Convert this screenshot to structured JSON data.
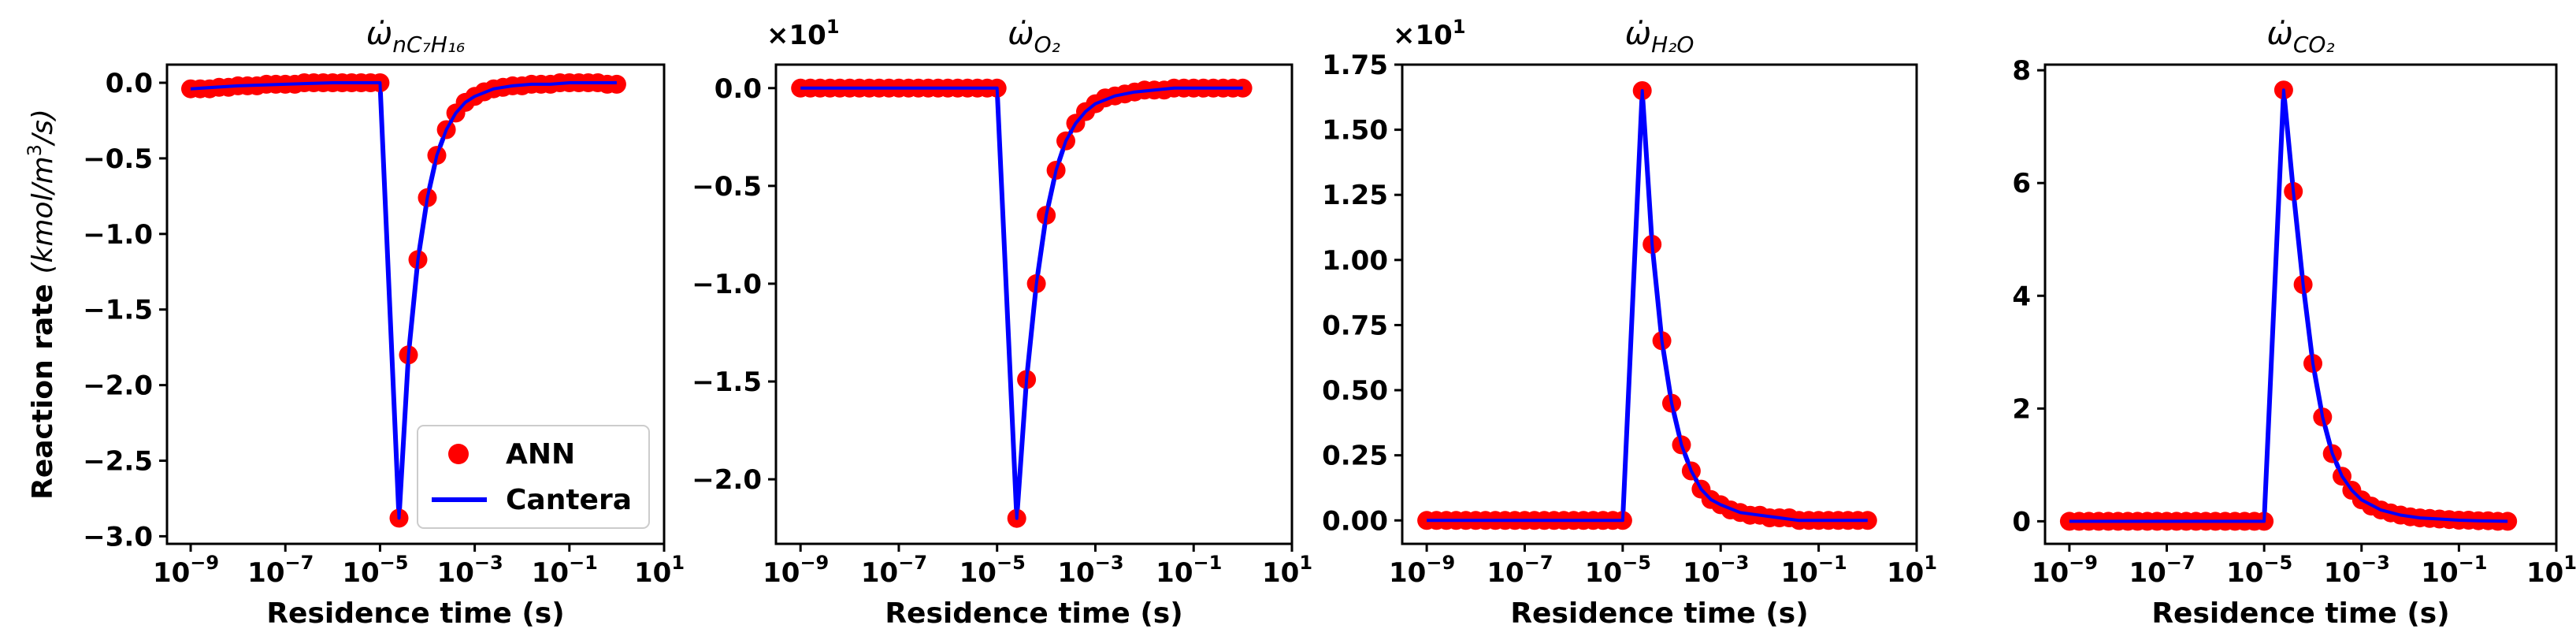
{
  "chart_data": [
    {
      "type": "scatter",
      "title": "ω̇_{nC7H16}",
      "title_main": "ω̇",
      "title_sub": "nC₇H₁₆",
      "xlabel": "Residence time (s)",
      "ylabel": "Reaction rate (kmol/m³/s)",
      "ylabel_main": "Reaction rate ",
      "ylabel_unit": "(kmol/m",
      "ylabel_sup": "3",
      "ylabel_end": "/s)",
      "xscale": "log",
      "xlim": [
        -9.5,
        1
      ],
      "ylim": [
        -3.05,
        0.12
      ],
      "x_ticks": [
        -9,
        -7,
        -5,
        -3,
        -1,
        1
      ],
      "x_tick_labels": [
        "10",
        "10",
        "10",
        "10",
        "10",
        "10"
      ],
      "x_tick_exps": [
        "−9",
        "−7",
        "−5",
        "−3",
        "−1",
        "1"
      ],
      "y_ticks": [
        0.0,
        -0.5,
        -1.0,
        -1.5,
        -2.0,
        -2.5,
        -3.0
      ],
      "y_tick_labels": [
        "0.0",
        "−0.5",
        "−1.0",
        "−1.5",
        "−2.0",
        "−2.5",
        "−3.0"
      ],
      "sci_label": "",
      "sci_exp": "",
      "legend": {
        "position": "lower-right",
        "entries": [
          "ANN",
          "Cantera"
        ]
      },
      "series": [
        {
          "name": "ANN",
          "style": "markers",
          "color": "#ff0000",
          "log_x": [
            -9.0,
            -8.8,
            -8.6,
            -8.4,
            -8.2,
            -8.0,
            -7.8,
            -7.6,
            -7.4,
            -7.2,
            -7.0,
            -6.8,
            -6.6,
            -6.4,
            -6.2,
            -6.0,
            -5.8,
            -5.6,
            -5.4,
            -5.2,
            -5.0,
            -4.6,
            -4.4,
            -4.2,
            -4.0,
            -3.8,
            -3.6,
            -3.4,
            -3.2,
            -3.0,
            -2.8,
            -2.6,
            -2.4,
            -2.2,
            -2.0,
            -1.8,
            -1.6,
            -1.4,
            -1.2,
            -1.0,
            -0.8,
            -0.6,
            -0.4,
            -0.2,
            0.0
          ],
          "y": [
            -0.04,
            -0.04,
            -0.04,
            -0.03,
            -0.03,
            -0.02,
            -0.02,
            -0.02,
            -0.01,
            -0.01,
            -0.01,
            -0.01,
            0,
            0,
            0,
            0,
            0,
            0,
            0,
            0,
            0,
            -2.88,
            -1.8,
            -1.17,
            -0.76,
            -0.48,
            -0.31,
            -0.2,
            -0.13,
            -0.09,
            -0.06,
            -0.04,
            -0.03,
            -0.02,
            -0.02,
            -0.01,
            -0.01,
            -0.01,
            0,
            0,
            0,
            0,
            0,
            -0.01,
            -0.01
          ]
        },
        {
          "name": "Cantera",
          "style": "line",
          "color": "#0000ff",
          "log_x": [
            -9.0,
            -8.0,
            -7.0,
            -6.0,
            -5.0,
            -4.6,
            -4.4,
            -4.2,
            -4.0,
            -3.8,
            -3.6,
            -3.4,
            -3.2,
            -3.0,
            -2.6,
            -2.2,
            -1.8,
            -1.4,
            -1.0,
            -0.6,
            0.0
          ],
          "y": [
            -0.04,
            -0.02,
            -0.01,
            0,
            0,
            -2.88,
            -1.8,
            -1.17,
            -0.76,
            -0.48,
            -0.31,
            -0.2,
            -0.13,
            -0.09,
            -0.04,
            -0.02,
            -0.01,
            -0.01,
            0,
            0,
            0
          ]
        }
      ]
    },
    {
      "type": "scatter",
      "title": "ω̇_{O2}",
      "title_main": "ω̇",
      "title_sub": "O₂",
      "xlabel": "Residence time (s)",
      "ylabel": "",
      "xscale": "log",
      "xlim": [
        -9.5,
        1
      ],
      "ylim": [
        -2.33,
        0.12
      ],
      "x_ticks": [
        -9,
        -7,
        -5,
        -3,
        -1,
        1
      ],
      "x_tick_labels": [
        "10",
        "10",
        "10",
        "10",
        "10",
        "10"
      ],
      "x_tick_exps": [
        "−9",
        "−7",
        "−5",
        "−3",
        "−1",
        "1"
      ],
      "y_ticks": [
        0.0,
        -0.5,
        -1.0,
        -1.5,
        -2.0
      ],
      "y_tick_labels": [
        "0.0",
        "−0.5",
        "−1.0",
        "−1.5",
        "−2.0"
      ],
      "sci_label": "×10",
      "sci_exp": "1",
      "series": [
        {
          "name": "ANN",
          "style": "markers",
          "color": "#ff0000",
          "log_x": [
            -9.0,
            -8.8,
            -8.6,
            -8.4,
            -8.2,
            -8.0,
            -7.8,
            -7.6,
            -7.4,
            -7.2,
            -7.0,
            -6.8,
            -6.6,
            -6.4,
            -6.2,
            -6.0,
            -5.8,
            -5.6,
            -5.4,
            -5.2,
            -5.0,
            -4.6,
            -4.4,
            -4.2,
            -4.0,
            -3.8,
            -3.6,
            -3.4,
            -3.2,
            -3.0,
            -2.8,
            -2.6,
            -2.4,
            -2.2,
            -2.0,
            -1.8,
            -1.6,
            -1.4,
            -1.2,
            -1.0,
            -0.8,
            -0.6,
            -0.4,
            -0.2,
            0.0
          ],
          "y": [
            0,
            0,
            0,
            0,
            0,
            0,
            0,
            0,
            0,
            0,
            0,
            0,
            0,
            0,
            0,
            0,
            0,
            0,
            0,
            0,
            0,
            -2.2,
            -1.49,
            -1.0,
            -0.65,
            -0.42,
            -0.27,
            -0.18,
            -0.12,
            -0.08,
            -0.05,
            -0.04,
            -0.03,
            -0.02,
            -0.01,
            -0.01,
            -0.01,
            0,
            0,
            0,
            0,
            0,
            0,
            0,
            0
          ]
        },
        {
          "name": "Cantera",
          "style": "line",
          "color": "#0000ff",
          "log_x": [
            -9.0,
            -8.0,
            -7.0,
            -6.0,
            -5.0,
            -4.6,
            -4.4,
            -4.2,
            -4.0,
            -3.8,
            -3.6,
            -3.4,
            -3.2,
            -3.0,
            -2.6,
            -2.2,
            -1.8,
            -1.4,
            -1.0,
            -0.6,
            0.0
          ],
          "y": [
            0,
            0,
            0,
            0,
            0,
            -2.2,
            -1.49,
            -1.0,
            -0.65,
            -0.42,
            -0.27,
            -0.18,
            -0.12,
            -0.08,
            -0.04,
            -0.02,
            -0.01,
            0,
            0,
            0,
            0
          ]
        }
      ]
    },
    {
      "type": "scatter",
      "title": "ω̇_{H2O}",
      "title_main": "ω̇",
      "title_sub": "H₂O",
      "xlabel": "Residence time (s)",
      "ylabel": "",
      "xscale": "log",
      "xlim": [
        -9.5,
        1
      ],
      "ylim": [
        -0.09,
        1.75
      ],
      "x_ticks": [
        -9,
        -7,
        -5,
        -3,
        -1,
        1
      ],
      "x_tick_labels": [
        "10",
        "10",
        "10",
        "10",
        "10",
        "10"
      ],
      "x_tick_exps": [
        "−9",
        "−7",
        "−5",
        "−3",
        "−1",
        "1"
      ],
      "y_ticks": [
        0.0,
        0.25,
        0.5,
        0.75,
        1.0,
        1.25,
        1.5,
        1.75
      ],
      "y_tick_labels": [
        "0.00",
        "0.25",
        "0.50",
        "0.75",
        "1.00",
        "1.25",
        "1.50",
        "1.75"
      ],
      "sci_label": "×10",
      "sci_exp": "1",
      "series": [
        {
          "name": "ANN",
          "style": "markers",
          "color": "#ff0000",
          "log_x": [
            -9.0,
            -8.8,
            -8.6,
            -8.4,
            -8.2,
            -8.0,
            -7.8,
            -7.6,
            -7.4,
            -7.2,
            -7.0,
            -6.8,
            -6.6,
            -6.4,
            -6.2,
            -6.0,
            -5.8,
            -5.6,
            -5.4,
            -5.2,
            -5.0,
            -4.6,
            -4.4,
            -4.2,
            -4.0,
            -3.8,
            -3.6,
            -3.4,
            -3.2,
            -3.0,
            -2.8,
            -2.6,
            -2.4,
            -2.2,
            -2.0,
            -1.8,
            -1.6,
            -1.4,
            -1.2,
            -1.0,
            -0.8,
            -0.6,
            -0.4,
            -0.2,
            0.0
          ],
          "y": [
            0,
            0,
            0,
            0,
            0,
            0,
            0,
            0,
            0,
            0,
            0,
            0,
            0,
            0,
            0,
            0,
            0,
            0,
            0,
            0,
            0,
            1.65,
            1.06,
            0.69,
            0.45,
            0.29,
            0.19,
            0.12,
            0.08,
            0.06,
            0.04,
            0.03,
            0.02,
            0.02,
            0.01,
            0.01,
            0.01,
            0,
            0,
            0,
            0,
            0,
            0,
            0,
            0
          ]
        },
        {
          "name": "Cantera",
          "style": "line",
          "color": "#0000ff",
          "log_x": [
            -9.0,
            -8.0,
            -7.0,
            -6.0,
            -5.0,
            -4.6,
            -4.4,
            -4.2,
            -4.0,
            -3.8,
            -3.6,
            -3.4,
            -3.2,
            -3.0,
            -2.6,
            -2.2,
            -1.8,
            -1.4,
            -1.0,
            -0.6,
            0.0
          ],
          "y": [
            0,
            0,
            0,
            0,
            0,
            1.65,
            1.06,
            0.69,
            0.45,
            0.29,
            0.19,
            0.12,
            0.08,
            0.06,
            0.03,
            0.02,
            0.01,
            0,
            0,
            0,
            0
          ]
        }
      ]
    },
    {
      "type": "scatter",
      "title": "ω̇_{CO2}",
      "title_main": "ω̇",
      "title_sub": "CO₂",
      "xlabel": "Residence time (s)",
      "ylabel": "",
      "xscale": "log",
      "xlim": [
        -9.5,
        1
      ],
      "ylim": [
        -0.4,
        8.1
      ],
      "x_ticks": [
        -9,
        -7,
        -5,
        -3,
        -1,
        1
      ],
      "x_tick_labels": [
        "10",
        "10",
        "10",
        "10",
        "10",
        "10"
      ],
      "x_tick_exps": [
        "−9",
        "−7",
        "−5",
        "−3",
        "−1",
        "1"
      ],
      "y_ticks": [
        0,
        2,
        4,
        6,
        8
      ],
      "y_tick_labels": [
        "0",
        "2",
        "4",
        "6",
        "8"
      ],
      "sci_label": "",
      "sci_exp": "",
      "series": [
        {
          "name": "ANN",
          "style": "markers",
          "color": "#ff0000",
          "log_x": [
            -9.0,
            -8.8,
            -8.6,
            -8.4,
            -8.2,
            -8.0,
            -7.8,
            -7.6,
            -7.4,
            -7.2,
            -7.0,
            -6.8,
            -6.6,
            -6.4,
            -6.2,
            -6.0,
            -5.8,
            -5.6,
            -5.4,
            -5.2,
            -5.0,
            -4.6,
            -4.4,
            -4.2,
            -4.0,
            -3.8,
            -3.6,
            -3.4,
            -3.2,
            -3.0,
            -2.8,
            -2.6,
            -2.4,
            -2.2,
            -2.0,
            -1.8,
            -1.6,
            -1.4,
            -1.2,
            -1.0,
            -0.8,
            -0.6,
            -0.4,
            -0.2,
            0.0
          ],
          "y": [
            0,
            0,
            0,
            0,
            0,
            0,
            0,
            0,
            0,
            0,
            0,
            0,
            0,
            0,
            0,
            0,
            0,
            0,
            0,
            0,
            0,
            7.65,
            5.85,
            4.2,
            2.8,
            1.85,
            1.2,
            0.8,
            0.55,
            0.38,
            0.27,
            0.2,
            0.15,
            0.11,
            0.08,
            0.06,
            0.05,
            0.04,
            0.03,
            0.02,
            0.02,
            0.01,
            0.01,
            0,
            0
          ]
        },
        {
          "name": "Cantera",
          "style": "line",
          "color": "#0000ff",
          "log_x": [
            -9.0,
            -8.0,
            -7.0,
            -6.0,
            -5.0,
            -4.6,
            -4.4,
            -4.2,
            -4.0,
            -3.8,
            -3.6,
            -3.4,
            -3.2,
            -3.0,
            -2.6,
            -2.2,
            -1.8,
            -1.4,
            -1.0,
            -0.6,
            0.0
          ],
          "y": [
            0,
            0,
            0,
            0,
            0,
            7.65,
            5.85,
            4.2,
            2.8,
            1.85,
            1.2,
            0.8,
            0.55,
            0.38,
            0.2,
            0.11,
            0.06,
            0.04,
            0.02,
            0.01,
            0
          ]
        }
      ]
    }
  ]
}
